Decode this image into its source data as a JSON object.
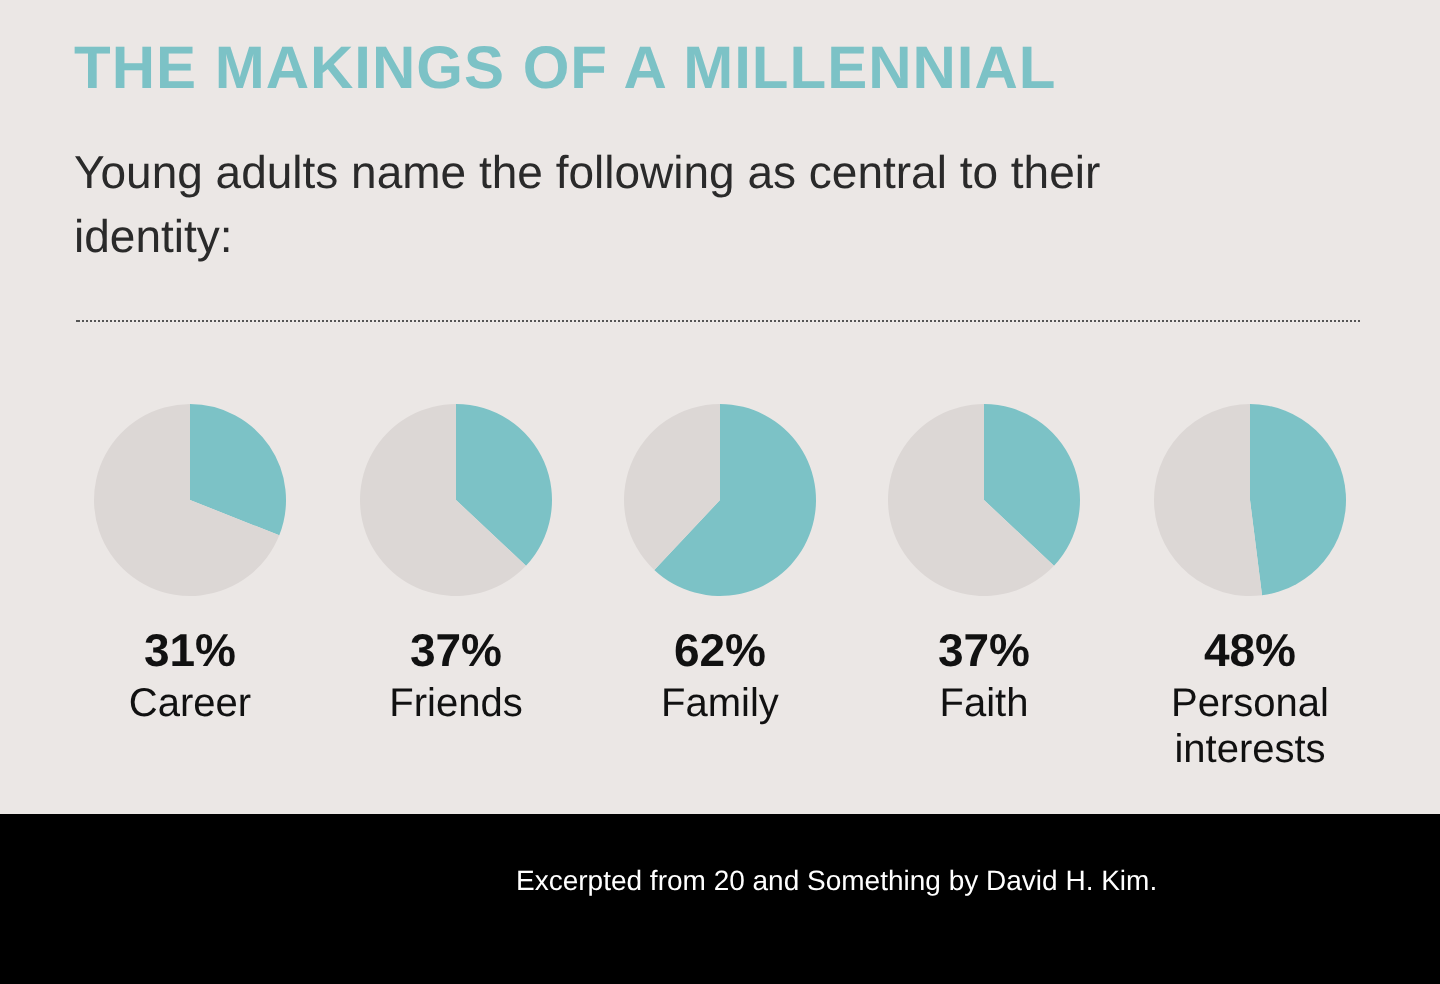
{
  "chart_data": [
    {
      "type": "other",
      "title": "THE MAKINGS OF A MILLENNIAL",
      "subtitle": "Young adults name the following as central to their identity:",
      "annotations": [
        "Excerpted from 20 and Something by David H. Kim."
      ]
    },
    {
      "type": "pie",
      "title": "31%",
      "subtitle": "Career",
      "categories": [
        null,
        null
      ],
      "values": [
        31,
        69
      ],
      "colors": [
        "#7cc2c6",
        "#dcd7d5"
      ]
    },
    {
      "type": "pie",
      "title": "37%",
      "subtitle": "Friends",
      "categories": [
        null,
        null
      ],
      "values": [
        37,
        63
      ],
      "colors": [
        "#7cc2c6",
        "#dcd7d5"
      ]
    },
    {
      "type": "pie",
      "title": "62%",
      "subtitle": "Family",
      "categories": [
        null,
        null
      ],
      "values": [
        62,
        38
      ],
      "colors": [
        "#7cc2c6",
        "#dcd7d5"
      ]
    },
    {
      "type": "pie",
      "title": "37%",
      "subtitle": "Faith",
      "categories": [
        null,
        null
      ],
      "values": [
        37,
        63
      ],
      "colors": [
        "#7cc2c6",
        "#dcd7d5"
      ]
    },
    {
      "type": "pie",
      "title": "48%",
      "subtitle": "Personal interests",
      "categories": [
        null,
        null
      ],
      "values": [
        48,
        52
      ],
      "colors": [
        "#7cc2c6",
        "#dcd7d5"
      ]
    }
  ]
}
